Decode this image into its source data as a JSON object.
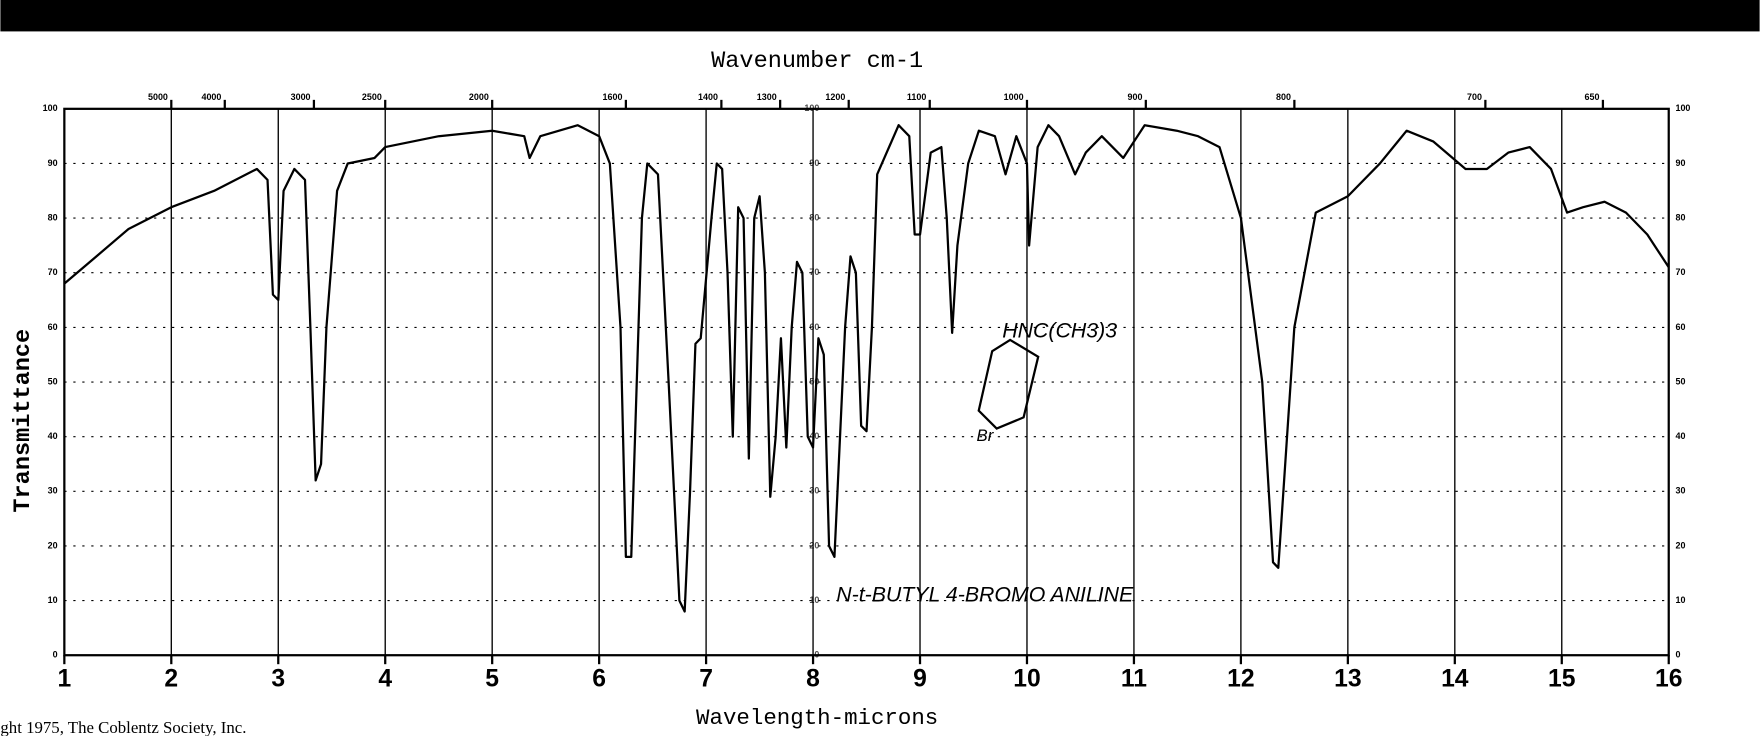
{
  "chart_data": {
    "type": "line",
    "title": "Wavenumber cm-1",
    "x_label": "Wavelength-microns",
    "y_label": "Transmittance",
    "annotations": [
      "N-t-BUTYL 4-BROMO ANILINE",
      "HNC(CH3)3",
      "Br"
    ],
    "footer": "ght 1975, The Coblentz Society, Inc.",
    "xlim": [
      1,
      16
    ],
    "ylim": [
      0,
      100
    ],
    "xticks": [
      1,
      2,
      3,
      4,
      5,
      6,
      7,
      8,
      9,
      10,
      11,
      12,
      13,
      14,
      15,
      16
    ],
    "yticks": [
      0,
      10,
      20,
      30,
      40,
      50,
      60,
      70,
      80,
      90,
      100
    ],
    "wavenumber_ticks": [
      5000,
      4000,
      3000,
      2500,
      2000,
      1600,
      1400,
      1300,
      1200,
      1100,
      1000,
      900,
      800,
      700,
      650
    ],
    "grid": true,
    "series": [
      {
        "name": "Transmittance",
        "color": "#000000",
        "x": [
          1.0,
          1.3,
          1.6,
          2.0,
          2.4,
          2.8,
          2.9,
          2.95,
          3.0,
          3.05,
          3.15,
          3.25,
          3.3,
          3.35,
          3.4,
          3.45,
          3.55,
          3.65,
          3.9,
          4.0,
          4.5,
          5.0,
          5.3,
          5.35,
          5.45,
          5.8,
          6.0,
          6.1,
          6.2,
          6.25,
          6.3,
          6.4,
          6.45,
          6.55,
          6.65,
          6.75,
          6.8,
          6.85,
          6.9,
          6.95,
          7.05,
          7.1,
          7.15,
          7.2,
          7.25,
          7.3,
          7.35,
          7.4,
          7.45,
          7.5,
          7.55,
          7.6,
          7.65,
          7.7,
          7.75,
          7.8,
          7.85,
          7.9,
          7.95,
          8.0,
          8.05,
          8.1,
          8.15,
          8.2,
          8.3,
          8.35,
          8.4,
          8.45,
          8.5,
          8.55,
          8.6,
          8.8,
          8.9,
          8.95,
          9.0,
          9.1,
          9.2,
          9.25,
          9.3,
          9.35,
          9.45,
          9.55,
          9.7,
          9.8,
          9.9,
          10.0,
          10.02,
          10.1,
          10.2,
          10.3,
          10.45,
          10.55,
          10.7,
          10.9,
          11.1,
          11.4,
          11.6,
          11.8,
          12.0,
          12.2,
          12.3,
          12.35,
          12.5,
          12.7,
          13.0,
          13.3,
          13.55,
          13.8,
          14.1,
          14.3,
          14.5,
          14.7,
          14.9,
          15.05,
          15.2,
          15.4,
          15.6,
          15.8,
          16.0
        ],
        "values": [
          68,
          73,
          78,
          82,
          85,
          89,
          87,
          66,
          65,
          85,
          89,
          87,
          60,
          32,
          35,
          60,
          85,
          90,
          91,
          93,
          95,
          96,
          95,
          91,
          95,
          97,
          95,
          90,
          60,
          18,
          18,
          80,
          90,
          88,
          50,
          10,
          8,
          30,
          57,
          58,
          80,
          90,
          89,
          70,
          40,
          82,
          80,
          36,
          80,
          84,
          70,
          29,
          40,
          58,
          38,
          60,
          72,
          70,
          40,
          38,
          58,
          55,
          20,
          18,
          60,
          73,
          70,
          42,
          41,
          60,
          88,
          97,
          95,
          77,
          77,
          92,
          93,
          80,
          59,
          75,
          90,
          96,
          95,
          88,
          95,
          90,
          75,
          93,
          97,
          95,
          88,
          92,
          95,
          91,
          97,
          96,
          95,
          93,
          80,
          50,
          17,
          16,
          60,
          81,
          84,
          90,
          96,
          94,
          89,
          89,
          92,
          93,
          89,
          81,
          82,
          83,
          81,
          77,
          71
        ]
      }
    ]
  }
}
